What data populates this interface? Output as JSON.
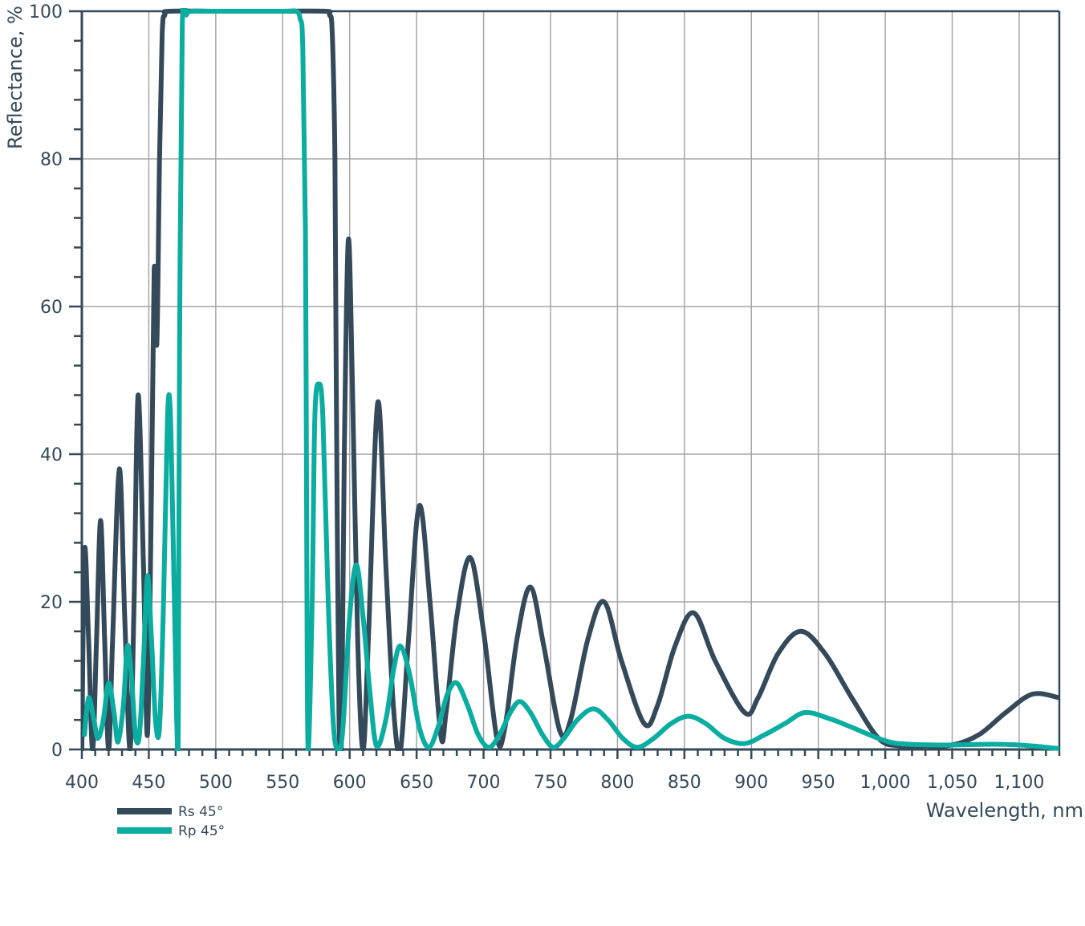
{
  "chart_data": {
    "type": "line",
    "xlabel": "Wavelength, nm",
    "ylabel": "Reflectance, %",
    "xlim": [
      400,
      1130
    ],
    "ylim": [
      0,
      100
    ],
    "x_ticks": [
      400,
      450,
      500,
      550,
      600,
      650,
      700,
      750,
      800,
      850,
      900,
      950,
      1000,
      1050,
      1100
    ],
    "x_tick_labels": [
      "400",
      "450",
      "500",
      "550",
      "600",
      "650",
      "700",
      "750",
      "800",
      "850",
      "900",
      "950",
      "1,000",
      "1,050",
      "1,100"
    ],
    "y_ticks": [
      0,
      20,
      40,
      60,
      80,
      100
    ],
    "y_tick_labels": [
      "0",
      "20",
      "40",
      "60",
      "80",
      "100"
    ],
    "grid": true,
    "legend_position": "bottom-left",
    "series": [
      {
        "name": "Rs 45°",
        "color": "#34495a",
        "points": [
          [
            400,
            0
          ],
          [
            402,
            27
          ],
          [
            405,
            15
          ],
          [
            408,
            0
          ],
          [
            411,
            15
          ],
          [
            414,
            31
          ],
          [
            417,
            15
          ],
          [
            420,
            0
          ],
          [
            423,
            15
          ],
          [
            428,
            38
          ],
          [
            432,
            18
          ],
          [
            436,
            0
          ],
          [
            439,
            20
          ],
          [
            442,
            48
          ],
          [
            446,
            25
          ],
          [
            449,
            2
          ],
          [
            452,
            35
          ],
          [
            454,
            65
          ],
          [
            456,
            55
          ],
          [
            458,
            80
          ],
          [
            460,
            97
          ],
          [
            462,
            99.5
          ],
          [
            465,
            100
          ],
          [
            500,
            100
          ],
          [
            550,
            100
          ],
          [
            582,
            100
          ],
          [
            585,
            99.5
          ],
          [
            587,
            97
          ],
          [
            589,
            80
          ],
          [
            590,
            50
          ],
          [
            592,
            5
          ],
          [
            594,
            2
          ],
          [
            596,
            40
          ],
          [
            599,
            69
          ],
          [
            602,
            50
          ],
          [
            606,
            15
          ],
          [
            610,
            0
          ],
          [
            614,
            15
          ],
          [
            621,
            47
          ],
          [
            627,
            25
          ],
          [
            633,
            5
          ],
          [
            638,
            0
          ],
          [
            644,
            15
          ],
          [
            652,
            33
          ],
          [
            660,
            20
          ],
          [
            668,
            2
          ],
          [
            672,
            5
          ],
          [
            680,
            18
          ],
          [
            690,
            26
          ],
          [
            700,
            16
          ],
          [
            710,
            1.5
          ],
          [
            716,
            3
          ],
          [
            725,
            15
          ],
          [
            735,
            22
          ],
          [
            745,
            14
          ],
          [
            757,
            2.5
          ],
          [
            765,
            4
          ],
          [
            778,
            15
          ],
          [
            790,
            20
          ],
          [
            803,
            12
          ],
          [
            820,
            3.5
          ],
          [
            830,
            6
          ],
          [
            843,
            14
          ],
          [
            857,
            18.5
          ],
          [
            873,
            12
          ],
          [
            895,
            5
          ],
          [
            905,
            7
          ],
          [
            920,
            13
          ],
          [
            937,
            16
          ],
          [
            955,
            13
          ],
          [
            975,
            7
          ],
          [
            995,
            1.5
          ],
          [
            1010,
            0.5
          ],
          [
            1030,
            0.5
          ],
          [
            1050,
            0.6
          ],
          [
            1070,
            2
          ],
          [
            1090,
            5
          ],
          [
            1110,
            7.5
          ],
          [
            1130,
            7
          ]
        ]
      },
      {
        "name": "Rp 45°",
        "color": "#0aada0",
        "points": [
          [
            402,
            2
          ],
          [
            405,
            7
          ],
          [
            409,
            4
          ],
          [
            412,
            1.5
          ],
          [
            416,
            4
          ],
          [
            420,
            9
          ],
          [
            424,
            5
          ],
          [
            427,
            1
          ],
          [
            431,
            6
          ],
          [
            434,
            14
          ],
          [
            437,
            10
          ],
          [
            440,
            2
          ],
          [
            443,
            2
          ],
          [
            446,
            12
          ],
          [
            449,
            23.5
          ],
          [
            452,
            15
          ],
          [
            455,
            4
          ],
          [
            458,
            3
          ],
          [
            461,
            20
          ],
          [
            464,
            45
          ],
          [
            466,
            46
          ],
          [
            468,
            30
          ],
          [
            470,
            12
          ],
          [
            471,
            3
          ],
          [
            472,
            3
          ],
          [
            473,
            55
          ],
          [
            475,
            98
          ],
          [
            478,
            99.5
          ],
          [
            482,
            100
          ],
          [
            500,
            100
          ],
          [
            550,
            100
          ],
          [
            560,
            100
          ],
          [
            563,
            99
          ],
          [
            565,
            95
          ],
          [
            567,
            70
          ],
          [
            568,
            25
          ],
          [
            569,
            0
          ],
          [
            572,
            20
          ],
          [
            574,
            45
          ],
          [
            577,
            49.5
          ],
          [
            580,
            45
          ],
          [
            584,
            20
          ],
          [
            588,
            3
          ],
          [
            592,
            0
          ],
          [
            595,
            3
          ],
          [
            600,
            18
          ],
          [
            605,
            25
          ],
          [
            610,
            18
          ],
          [
            615,
            8
          ],
          [
            620,
            0.5
          ],
          [
            627,
            4
          ],
          [
            633,
            11
          ],
          [
            638,
            14
          ],
          [
            645,
            10
          ],
          [
            652,
            3
          ],
          [
            659,
            0.3
          ],
          [
            666,
            3
          ],
          [
            673,
            7.5
          ],
          [
            680,
            9
          ],
          [
            688,
            6
          ],
          [
            696,
            2
          ],
          [
            704,
            0.3
          ],
          [
            712,
            2
          ],
          [
            720,
            5
          ],
          [
            727,
            6.5
          ],
          [
            735,
            5
          ],
          [
            744,
            2
          ],
          [
            752,
            0.3
          ],
          [
            760,
            1.5
          ],
          [
            770,
            4
          ],
          [
            782,
            5.5
          ],
          [
            793,
            4
          ],
          [
            804,
            1.5
          ],
          [
            815,
            0.3
          ],
          [
            827,
            1.5
          ],
          [
            840,
            3.5
          ],
          [
            853,
            4.5
          ],
          [
            866,
            3.5
          ],
          [
            880,
            1.5
          ],
          [
            895,
            0.8
          ],
          [
            910,
            2
          ],
          [
            925,
            3.5
          ],
          [
            940,
            5
          ],
          [
            958,
            4.2
          ],
          [
            975,
            3
          ],
          [
            995,
            1.5
          ],
          [
            1010,
            0.8
          ],
          [
            1040,
            0.6
          ],
          [
            1080,
            0.7
          ],
          [
            1100,
            0.6
          ],
          [
            1115,
            0.4
          ],
          [
            1130,
            0.1
          ]
        ]
      }
    ]
  }
}
